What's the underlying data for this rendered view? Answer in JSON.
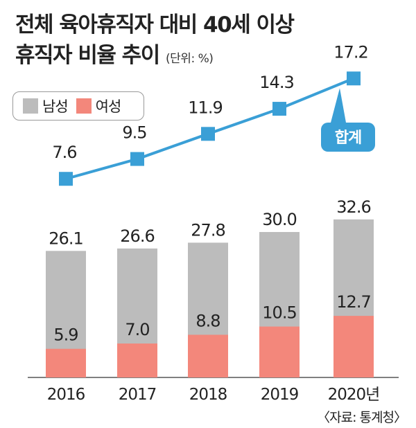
{
  "title_line1": "전체 육아휴직자 대비 40세 이상",
  "title_line2": "휴직자 비율 추이",
  "unit": "(단위: %)",
  "legend": [
    {
      "label": "남성",
      "color": "#bcbcbc"
    },
    {
      "label": "여성",
      "color": "#f3877b"
    }
  ],
  "source": "〈자료: 통계청〉",
  "chart_data": {
    "type": "bar",
    "categories": [
      "2016",
      "2017",
      "2018",
      "2019",
      "2020년"
    ],
    "series": [
      {
        "name": "남성",
        "values": [
          26.1,
          26.6,
          27.8,
          30.0,
          32.6
        ],
        "color": "#bcbcbc"
      },
      {
        "name": "여성",
        "values": [
          5.9,
          7.0,
          8.8,
          10.5,
          12.7
        ],
        "color": "#f3877b"
      }
    ],
    "value_labels_top": [
      "26.1",
      "26.6",
      "27.8",
      "30.0",
      "32.6"
    ],
    "value_labels_female": [
      "5.9",
      "7.0",
      "8.8",
      "10.5",
      "12.7"
    ],
    "line": {
      "name": "합계",
      "values": [
        7.6,
        9.5,
        11.9,
        14.3,
        17.2
      ],
      "labels": [
        "7.6",
        "9.5",
        "11.9",
        "14.3",
        "17.2"
      ],
      "color": "#3a9fd6"
    }
  }
}
